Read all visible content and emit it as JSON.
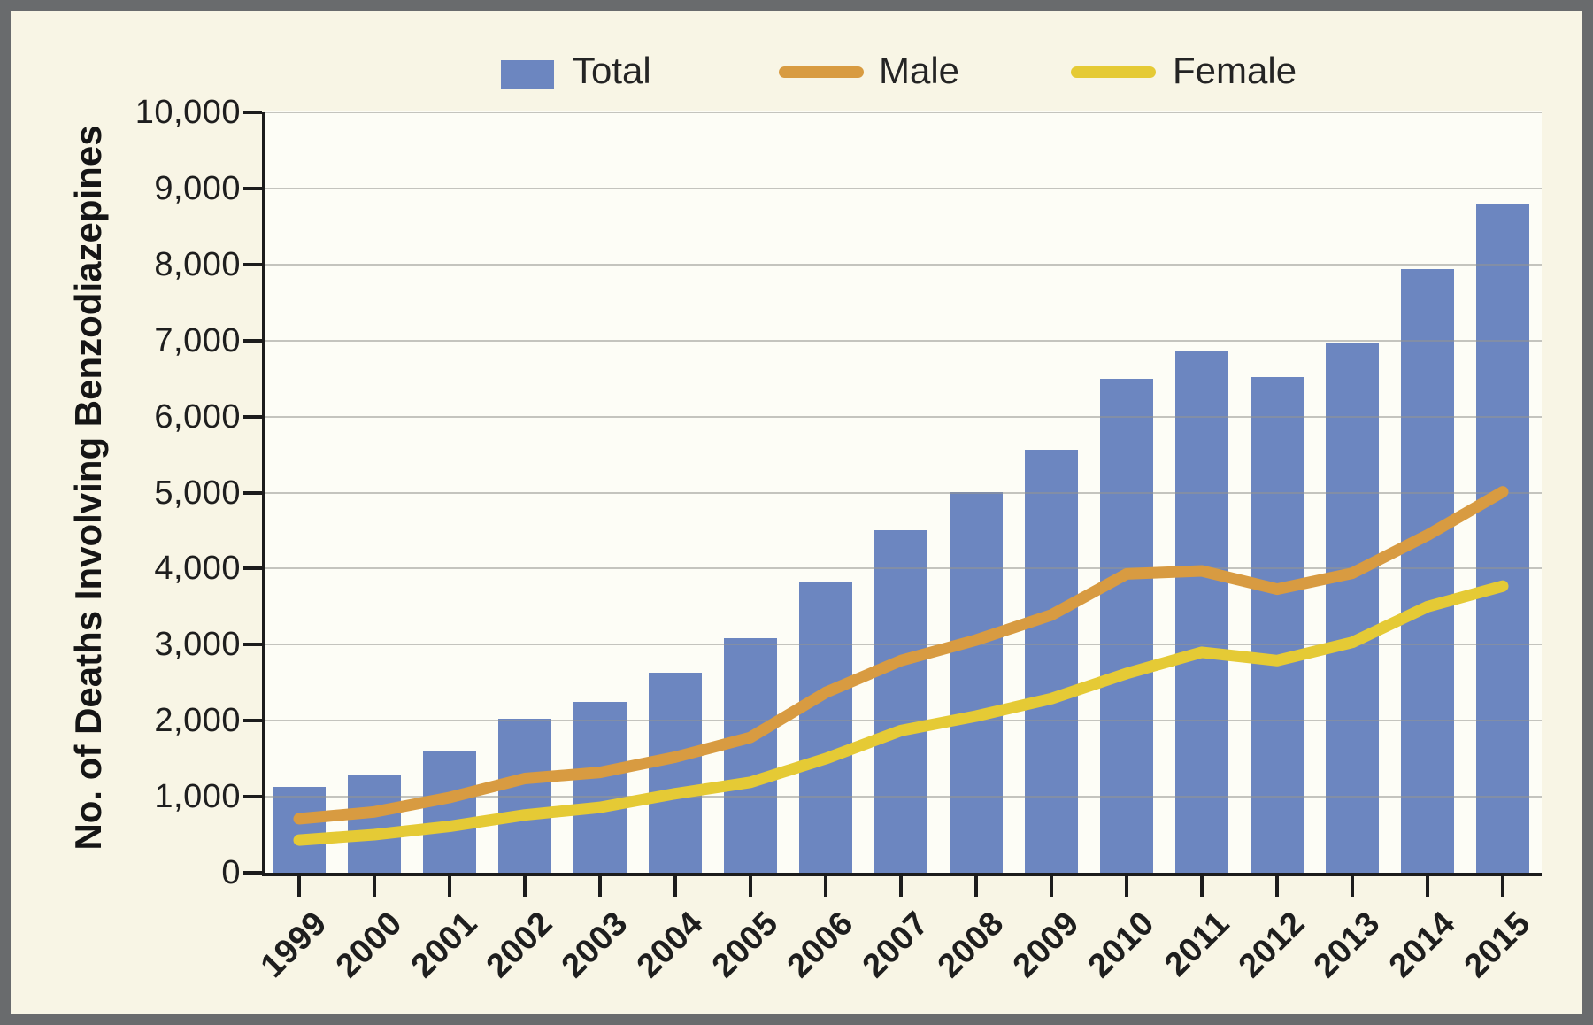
{
  "figure": {
    "background": "#f8f5e5",
    "plot_background": "#fdfdf6",
    "frame_color": "#696b6d",
    "grid_color": "rgba(150,150,144,0.55)",
    "axis_color": "#1c1c1c"
  },
  "chart_data": {
    "type": "combo",
    "title": "",
    "xlabel": "",
    "ylabel": "No. of Deaths Involving Benzodiazepines",
    "categories": [
      "1999",
      "2000",
      "2001",
      "2002",
      "2003",
      "2004",
      "2005",
      "2006",
      "2007",
      "2008",
      "2009",
      "2010",
      "2011",
      "2012",
      "2013",
      "2014",
      "2015"
    ],
    "series": [
      {
        "name": "Total",
        "kind": "bar",
        "color": "#6c86c0",
        "values": [
          1135,
          1298,
          1594,
          2022,
          2248,
          2627,
          3084,
          3835,
          4500,
          5010,
          5567,
          6497,
          6872,
          6524,
          6973,
          7945,
          8791
        ]
      },
      {
        "name": "Male",
        "kind": "line",
        "color": "#d89b41",
        "values": [
          710,
          800,
          990,
          1240,
          1320,
          1520,
          1780,
          2370,
          2790,
          3060,
          3390,
          3930,
          3970,
          3730,
          3940,
          4440,
          5010
        ]
      },
      {
        "name": "Female",
        "kind": "line",
        "color": "#e5ca35",
        "values": [
          430,
          500,
          610,
          760,
          860,
          1040,
          1190,
          1500,
          1870,
          2060,
          2290,
          2620,
          2900,
          2790,
          3030,
          3500,
          3770
        ]
      }
    ],
    "ylim": [
      0,
      10000
    ],
    "ytick_step": 1000,
    "ytick_labels": [
      "0",
      "1,000",
      "2,000",
      "3,000",
      "4,000",
      "5,000",
      "6,000",
      "7,000",
      "8,000",
      "9,000",
      "10,000"
    ],
    "grid": true,
    "legend_position": "top"
  }
}
